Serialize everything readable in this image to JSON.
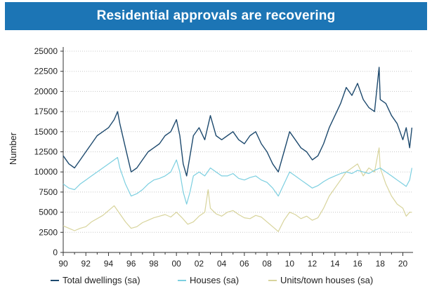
{
  "colors": {
    "title_bg": "#1c75b5",
    "title_text": "#ffffff",
    "total": "#1e4a6e",
    "houses": "#7ccfe0",
    "units": "#d8d49c",
    "grid": "#c8c8c8",
    "axis": "#333333"
  },
  "chart_data": {
    "type": "line",
    "title": "Residential approvals are recovering",
    "ylabel": "Number",
    "xlabel": "",
    "xlim": [
      1990,
      2020.9
    ],
    "ylim": [
      0,
      25000
    ],
    "y_ticks": [
      0,
      2500,
      5000,
      7500,
      10000,
      12500,
      15000,
      17500,
      20000,
      22500,
      25000
    ],
    "y_tick_labels": [
      "0",
      "2500",
      "5000",
      "7500",
      "10000",
      "12500",
      "15000",
      "17500",
      "20000",
      "22500",
      "25000"
    ],
    "x_ticks": [
      1990,
      1992,
      1994,
      1996,
      1998,
      2000,
      2002,
      2004,
      2006,
      2008,
      2010,
      2012,
      2014,
      2016,
      2018,
      2020
    ],
    "x_tick_labels": [
      "90",
      "92",
      "94",
      "96",
      "98",
      "00",
      "02",
      "04",
      "06",
      "08",
      "10",
      "12",
      "14",
      "16",
      "18",
      "20"
    ],
    "grid": "horizontal dotted",
    "legend_position": "bottom",
    "series": [
      {
        "name": "Total dwellings (sa)",
        "color_key": "total",
        "x": [
          1990.0,
          1990.5,
          1991.0,
          1991.5,
          1992.0,
          1992.5,
          1993.0,
          1993.5,
          1994.0,
          1994.5,
          1994.8,
          1995.0,
          1995.5,
          1996.0,
          1996.5,
          1997.0,
          1997.5,
          1998.0,
          1998.5,
          1999.0,
          1999.5,
          2000.0,
          2000.3,
          2000.6,
          2000.9,
          2001.2,
          2001.5,
          2002.0,
          2002.5,
          2003.0,
          2003.5,
          2004.0,
          2004.5,
          2005.0,
          2005.5,
          2006.0,
          2006.5,
          2007.0,
          2007.5,
          2008.0,
          2008.5,
          2009.0,
          2009.5,
          2010.0,
          2010.5,
          2011.0,
          2011.5,
          2012.0,
          2012.5,
          2013.0,
          2013.5,
          2014.0,
          2014.5,
          2015.0,
          2015.5,
          2016.0,
          2016.5,
          2017.0,
          2017.5,
          2017.9,
          2018.0,
          2018.5,
          2019.0,
          2019.5,
          2020.0,
          2020.3,
          2020.6,
          2020.8
        ],
        "values": [
          12000,
          11000,
          10500,
          11500,
          12500,
          13500,
          14500,
          15000,
          15500,
          16500,
          17500,
          16000,
          13000,
          10000,
          10500,
          11500,
          12500,
          13000,
          13500,
          14500,
          15000,
          16500,
          14500,
          11000,
          9500,
          12000,
          14500,
          15500,
          14000,
          17000,
          14500,
          14000,
          14500,
          15000,
          14000,
          13500,
          14500,
          15000,
          13500,
          12500,
          11000,
          10000,
          12500,
          15000,
          14000,
          13000,
          12500,
          11500,
          12000,
          13500,
          15500,
          17000,
          18500,
          20500,
          19500,
          21000,
          19000,
          18000,
          17500,
          23000,
          19000,
          18500,
          17000,
          16000,
          14000,
          15500,
          13000,
          15500
        ]
      },
      {
        "name": "Houses (sa)",
        "color_key": "houses",
        "x": [
          1990.0,
          1990.5,
          1991.0,
          1991.5,
          1992.0,
          1992.5,
          1993.0,
          1993.5,
          1994.0,
          1994.5,
          1994.8,
          1995.0,
          1995.5,
          1996.0,
          1996.5,
          1997.0,
          1997.5,
          1998.0,
          1998.5,
          1999.0,
          1999.5,
          2000.0,
          2000.3,
          2000.6,
          2000.9,
          2001.2,
          2001.5,
          2002.0,
          2002.5,
          2003.0,
          2003.5,
          2004.0,
          2004.5,
          2005.0,
          2005.5,
          2006.0,
          2006.5,
          2007.0,
          2007.5,
          2008.0,
          2008.5,
          2009.0,
          2009.5,
          2010.0,
          2010.5,
          2011.0,
          2011.5,
          2012.0,
          2012.5,
          2013.0,
          2013.5,
          2014.0,
          2014.5,
          2015.0,
          2015.5,
          2016.0,
          2016.5,
          2017.0,
          2017.5,
          2018.0,
          2018.5,
          2019.0,
          2019.5,
          2020.0,
          2020.3,
          2020.6,
          2020.8
        ],
        "values": [
          8500,
          8000,
          7800,
          8500,
          9000,
          9500,
          10000,
          10500,
          11000,
          11500,
          11800,
          10500,
          8500,
          7000,
          7300,
          7800,
          8500,
          9000,
          9200,
          9500,
          10000,
          11500,
          10000,
          7500,
          6000,
          7500,
          9500,
          10000,
          9500,
          10500,
          10000,
          9500,
          9500,
          9800,
          9200,
          9000,
          9300,
          9500,
          9000,
          8700,
          8000,
          7000,
          8500,
          10000,
          9500,
          9000,
          8500,
          8000,
          8300,
          8800,
          9200,
          9500,
          9800,
          10000,
          9800,
          10200,
          10000,
          9800,
          10200,
          10500,
          10000,
          9500,
          9000,
          8500,
          8200,
          9000,
          10500
        ]
      },
      {
        "name": "Units/town houses (sa)",
        "color_key": "units",
        "x": [
          1990.0,
          1990.5,
          1991.0,
          1991.5,
          1992.0,
          1992.5,
          1993.0,
          1993.5,
          1994.0,
          1994.5,
          1995.0,
          1995.5,
          1996.0,
          1996.5,
          1997.0,
          1997.5,
          1998.0,
          1998.5,
          1999.0,
          1999.5,
          2000.0,
          2000.5,
          2001.0,
          2001.5,
          2002.0,
          2002.5,
          2002.8,
          2003.0,
          2003.5,
          2004.0,
          2004.5,
          2005.0,
          2005.5,
          2006.0,
          2006.5,
          2007.0,
          2007.5,
          2008.0,
          2008.5,
          2009.0,
          2009.5,
          2010.0,
          2010.5,
          2011.0,
          2011.5,
          2012.0,
          2012.5,
          2013.0,
          2013.5,
          2014.0,
          2014.5,
          2015.0,
          2015.5,
          2016.0,
          2016.5,
          2017.0,
          2017.5,
          2017.9,
          2018.0,
          2018.5,
          2019.0,
          2019.5,
          2020.0,
          2020.3,
          2020.6,
          2020.8
        ],
        "values": [
          3300,
          3000,
          2700,
          3000,
          3200,
          3800,
          4200,
          4600,
          5200,
          5800,
          4800,
          3800,
          3000,
          3200,
          3700,
          4000,
          4300,
          4500,
          4700,
          4400,
          5000,
          4300,
          3500,
          3800,
          4500,
          5000,
          7800,
          5500,
          4800,
          4500,
          5000,
          5200,
          4700,
          4300,
          4200,
          4600,
          4400,
          3800,
          3200,
          2600,
          4000,
          5000,
          4700,
          4200,
          4500,
          4000,
          4300,
          5500,
          7000,
          8000,
          9000,
          10000,
          10500,
          11000,
          9500,
          10500,
          10000,
          13000,
          10500,
          8500,
          7000,
          6000,
          5500,
          4500,
          5000,
          5000
        ]
      }
    ]
  }
}
